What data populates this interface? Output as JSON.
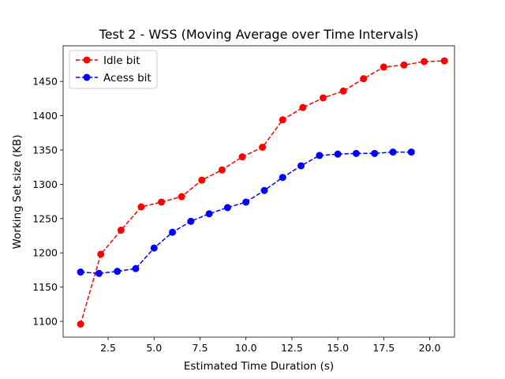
{
  "chart_data": {
    "type": "line",
    "title": "Test 2 - WSS (Moving Average over Time Intervals)",
    "xlabel": "Estimated Time Duration (s)",
    "ylabel": "Working Set size (KB)",
    "xlim": [
      0.05,
      21.35
    ],
    "ylim": [
      1077,
      1502
    ],
    "xticks": [
      2.5,
      5.0,
      7.5,
      10.0,
      12.5,
      15.0,
      17.5,
      20.0
    ],
    "xtick_labels": [
      "2.5",
      "5.0",
      "7.5",
      "10.0",
      "12.5",
      "15.0",
      "17.5",
      "20.0"
    ],
    "yticks": [
      1100,
      1150,
      1200,
      1250,
      1300,
      1350,
      1400,
      1450
    ],
    "ytick_labels": [
      "1100",
      "1150",
      "1200",
      "1250",
      "1300",
      "1350",
      "1400",
      "1450"
    ],
    "grid": false,
    "legend_position": "top-left",
    "series": [
      {
        "name": "Idle bit",
        "color": "#ff0000",
        "x": [
          1.0,
          2.1,
          3.2,
          4.3,
          5.4,
          6.5,
          7.6,
          8.7,
          9.8,
          10.9,
          12.0,
          13.1,
          14.2,
          15.3,
          16.4,
          17.5,
          18.6,
          19.7,
          20.8
        ],
        "y": [
          1096,
          1198,
          1233,
          1267,
          1274,
          1282,
          1306,
          1321,
          1340,
          1354,
          1394,
          1412,
          1426,
          1436,
          1454,
          1471,
          1474,
          1479,
          1480
        ]
      },
      {
        "name": "Acess bit",
        "color": "#0000ff",
        "x": [
          1.0,
          2.0,
          3.0,
          4.0,
          5.0,
          6.0,
          7.0,
          8.0,
          9.0,
          10.0,
          11.0,
          12.0,
          13.0,
          14.0,
          15.0,
          16.0,
          17.0,
          18.0,
          19.0
        ],
        "y": [
          1172,
          1170,
          1173,
          1177,
          1207,
          1230,
          1246,
          1257,
          1266,
          1274,
          1291,
          1310,
          1327,
          1342,
          1344,
          1345,
          1345,
          1347,
          1347
        ]
      }
    ]
  }
}
